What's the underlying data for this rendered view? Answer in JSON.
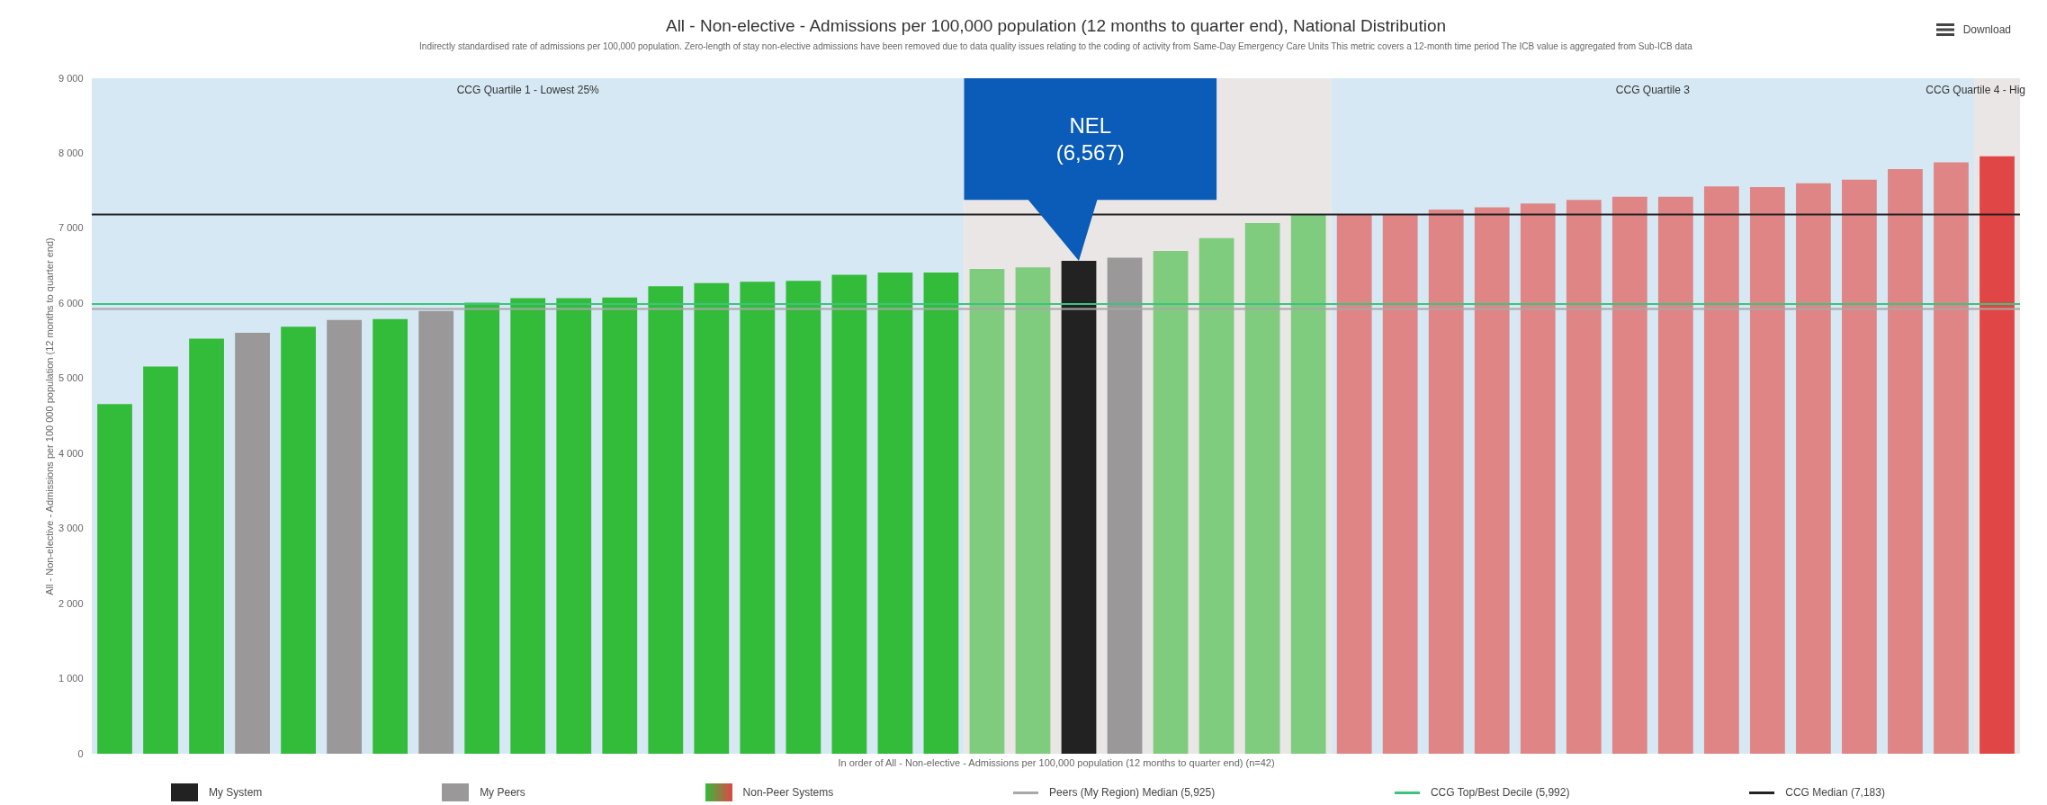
{
  "chart_data": {
    "type": "bar",
    "title": "All - Non-elective - Admissions per 100,000 population (12 months to quarter end), National Distribution",
    "subtitle": "Indirectly standardised rate of admissions per 100,000 population. Zero-length of stay non-elective admissions have been removed due to data quality issues relating to the coding of activity from Same-Day Emergency Care Units This metric covers a 12-month time period The ICB value is aggregated from Sub-ICB data",
    "xlabel": "In order of All - Non-elective - Admissions per 100,000 population (12 months to quarter end) (n=42)",
    "ylabel": "All - Non-elective - Admissions per 100 000 population (12 months to quarter end)",
    "categories": [
      null,
      null,
      null,
      null,
      null,
      null,
      null,
      null,
      null,
      null,
      null,
      null,
      null,
      null,
      null,
      null,
      null,
      null,
      null,
      null,
      null,
      null,
      null,
      null,
      null,
      null,
      null,
      null,
      null,
      null,
      null,
      null,
      null,
      null,
      null,
      null,
      null,
      null,
      null,
      null,
      null,
      null
    ],
    "series": [
      {
        "name": "My System",
        "color": "#222222",
        "values": [
          null,
          null,
          null,
          null,
          null,
          null,
          null,
          null,
          null,
          null,
          null,
          null,
          null,
          null,
          null,
          null,
          null,
          null,
          null,
          null,
          null,
          6567,
          null,
          null,
          null,
          null,
          null,
          null,
          null,
          null,
          null,
          null,
          null,
          null,
          null,
          null,
          null,
          null,
          null,
          null,
          null,
          null
        ]
      },
      {
        "name": "My Peers",
        "color": "#9a9898",
        "values": [
          null,
          null,
          null,
          5610,
          null,
          5780,
          null,
          5900,
          null,
          null,
          null,
          null,
          null,
          null,
          null,
          null,
          null,
          null,
          null,
          null,
          null,
          null,
          6610,
          null,
          null,
          null,
          null,
          null,
          null,
          null,
          null,
          null,
          null,
          null,
          null,
          null,
          null,
          null,
          null,
          null,
          null,
          null
        ]
      },
      {
        "name": "Non-Peer Systems",
        "colors": [
          "#33bb3a",
          "#33bb3a",
          "#33bb3a",
          null,
          "#33bb3a",
          null,
          "#33bb3a",
          null,
          "#33bb3a",
          "#33bb3a",
          "#33bb3a",
          "#33bb3a",
          "#33bb3a",
          "#33bb3a",
          "#33bb3a",
          "#33bb3a",
          "#33bb3a",
          "#33bb3a",
          "#33bb3a",
          "#7fcc7f",
          "#7fcc7f",
          null,
          null,
          "#7fcc7f",
          "#7fcc7f",
          "#7fcc7f",
          "#7fcc7f",
          "#e08585",
          "#e08585",
          "#e08585",
          "#e08585",
          "#e08585",
          "#e08585",
          "#e08585",
          "#e08585",
          "#e08585",
          "#e08585",
          "#e08585",
          "#e08585",
          "#e08585",
          "#e08585",
          "#e04646"
        ],
        "values": [
          4660,
          5160,
          5530,
          null,
          5690,
          null,
          5790,
          null,
          6010,
          6070,
          6070,
          6080,
          6230,
          6270,
          6290,
          6300,
          6380,
          6410,
          6410,
          6460,
          6480,
          null,
          null,
          6700,
          6870,
          7070,
          7180,
          7180,
          7190,
          7250,
          7280,
          7330,
          7380,
          7420,
          7420,
          7560,
          7550,
          7600,
          7650,
          7790,
          7880,
          7960
        ]
      }
    ],
    "ylim": [
      0,
      9000
    ],
    "yticks": [
      {
        "value": 0,
        "label": "0"
      },
      {
        "value": 1000,
        "label": "1 000"
      },
      {
        "value": 2000,
        "label": "2 000"
      },
      {
        "value": 3000,
        "label": "3 000"
      },
      {
        "value": 4000,
        "label": "4 000"
      },
      {
        "value": 5000,
        "label": "5 000"
      },
      {
        "value": 6000,
        "label": "6 000"
      },
      {
        "value": 7000,
        "label": "7 000"
      },
      {
        "value": 8000,
        "label": "8 000"
      },
      {
        "value": 9000,
        "label": "9 000"
      }
    ],
    "tick_labels": "y",
    "ref_lines": [
      {
        "axis": "y",
        "value": 5925,
        "label": "Peers (My Region) Median (5,925)",
        "color": "#a8a8a8"
      },
      {
        "axis": "y",
        "value": 5992,
        "label": "CCG Top/Best Decile (5,992)",
        "color": "#3cc47e"
      },
      {
        "axis": "y",
        "value": 7183,
        "label": "CCG Median (7,183)",
        "color": "#222222"
      }
    ],
    "annotations": [
      "Download",
      "NEL\n(6,567)",
      "CCG Quartile 1 - Lowest 25%",
      "CCG Quartile 3",
      "CCG Quartile 4 - Hig"
    ],
    "legend": "bottom"
  }
}
